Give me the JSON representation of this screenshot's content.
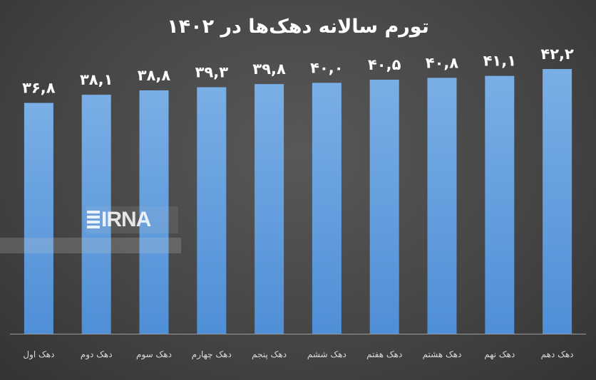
{
  "chart_data": {
    "type": "bar",
    "title": "تورم سالانه دهک‌ها در ۱۴۰۲",
    "categories": [
      "دهک اول",
      "دهک دوم",
      "دهک سوم",
      "دهک چهارم",
      "دهک پنجم",
      "دهک ششم",
      "دهک هفتم",
      "دهک هشتم",
      "دهک نهم",
      "دهک دهم"
    ],
    "values": [
      36.8,
      38.1,
      38.8,
      39.3,
      39.8,
      40.0,
      40.5,
      40.8,
      41.1,
      42.2
    ],
    "value_labels": [
      "۳۶,۸",
      "۳۸,۱",
      "۳۸,۸",
      "۳۹,۳",
      "۳۹,۸",
      "۴۰,۰",
      "۴۰,۵",
      "۴۰,۸",
      "۴۱,۱",
      "۴۲,۲"
    ],
    "ylim": [
      0,
      42.2
    ],
    "grid": false,
    "colors": {
      "bar_top": "#7aaee6",
      "bar_bottom": "#4f8fd6",
      "label": "#ffffff",
      "category": "#d9d9d9",
      "axis": "#9a9a9a"
    }
  },
  "watermark": {
    "brand": "IRNA"
  }
}
